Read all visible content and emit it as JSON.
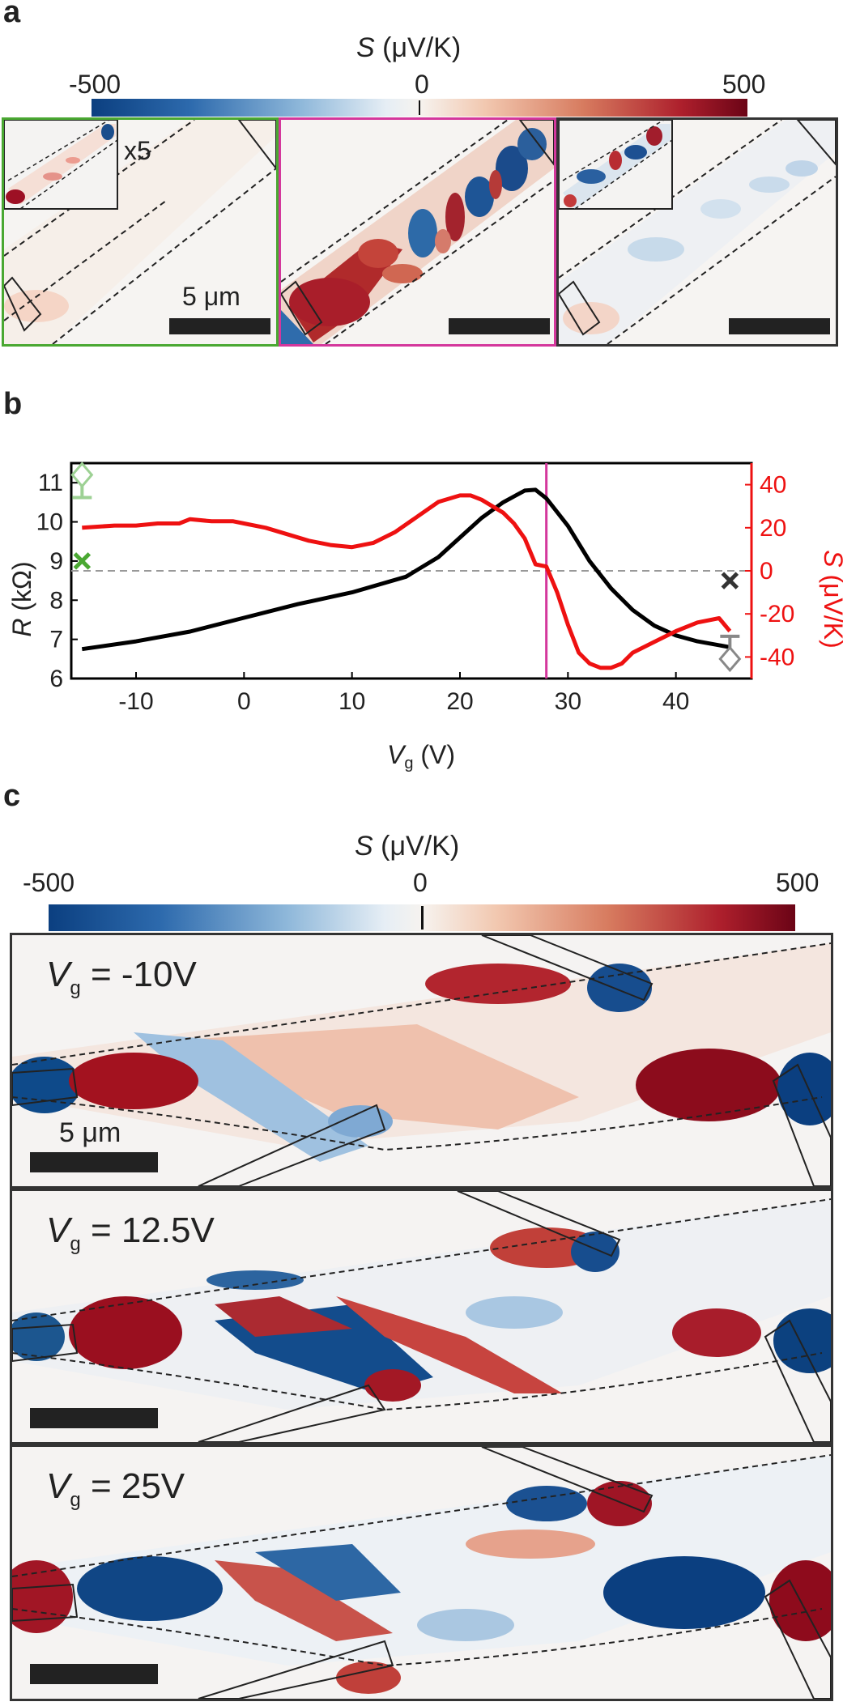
{
  "panel_a": {
    "letter": "a",
    "colorbar": {
      "label": "S (μV/K)",
      "label_var": "S",
      "label_unit": "(μV/K)",
      "ticks": [
        "-500",
        "0",
        "500"
      ],
      "min": -500,
      "max": 500,
      "colors": [
        "#0b3f80",
        "#f7f7f7",
        "#7a0617"
      ]
    },
    "maps": [
      {
        "frame_color": "#4aa832",
        "inset_label": "x5",
        "scalebar_label": "5 μm"
      },
      {
        "frame_color": "#d4379c",
        "scalebar_label": ""
      },
      {
        "frame_color": "#333333",
        "scalebar_label": ""
      }
    ]
  },
  "panel_b": {
    "letter": "b",
    "chart_data": {
      "type": "line",
      "xlabel": "Vg (V)",
      "xlabel_var": "V",
      "xlabel_sub": "g",
      "xlabel_unit": "(V)",
      "ylabel_left": "R (kΩ)",
      "ylabel_left_var": "R",
      "ylabel_left_unit": "(kΩ)",
      "ylabel_right": "S (μV/K)",
      "ylabel_right_var": "S",
      "ylabel_right_unit": "(μV/K)",
      "xlim": [
        -16,
        47
      ],
      "ylim_left": [
        6,
        11.5
      ],
      "ylim_right": [
        -50,
        50
      ],
      "xticks": [
        "-10",
        "0",
        "10",
        "20",
        "30",
        "40"
      ],
      "yticks_left": [
        "6",
        "7",
        "8",
        "9",
        "10",
        "11"
      ],
      "yticks_right": [
        "40",
        "20",
        "0",
        "-20",
        "-40"
      ],
      "series": [
        {
          "axis": "left",
          "color": "#000000",
          "x": [
            -15,
            -10,
            -5,
            0,
            5,
            10,
            15,
            18,
            20,
            22,
            24,
            26,
            27,
            28,
            30,
            32,
            34,
            36,
            38,
            40,
            42,
            45
          ],
          "values": [
            6.75,
            6.95,
            7.2,
            7.55,
            7.9,
            8.2,
            8.6,
            9.1,
            9.6,
            10.1,
            10.5,
            10.8,
            10.82,
            10.6,
            9.9,
            9.0,
            8.3,
            7.75,
            7.35,
            7.1,
            6.95,
            6.8
          ]
        },
        {
          "axis": "right",
          "color": "#ee1111",
          "x": [
            -15,
            -12,
            -10,
            -8,
            -6,
            -5,
            -3,
            -1,
            0,
            2,
            4,
            6,
            8,
            10,
            12,
            14,
            16,
            18,
            20,
            21,
            22,
            24,
            25,
            26,
            27,
            28,
            29,
            30,
            31,
            32,
            33,
            34,
            35,
            36,
            38,
            40,
            42,
            44,
            45
          ],
          "values": [
            20,
            21,
            21,
            22,
            22,
            24,
            23,
            23,
            22,
            20,
            17,
            14,
            12,
            11,
            13,
            18,
            25,
            32,
            35,
            35,
            33,
            27,
            22,
            15,
            3,
            2,
            -10,
            -25,
            -38,
            -43,
            -45,
            -45,
            -43,
            -38,
            -33,
            -28,
            -24,
            -22,
            -28
          ]
        }
      ],
      "reference_line": {
        "y_right": 0,
        "style": "dashed"
      },
      "vertical_line": {
        "x": 28,
        "color": "#d4379c"
      },
      "markers": [
        {
          "x": -15,
          "y_left": 9,
          "shape": "x",
          "color": "#4aa832"
        },
        {
          "x": -15,
          "y_left": 11.2,
          "shape": "diamond",
          "color": "#9dd194"
        },
        {
          "x": 45,
          "y_left": 8.5,
          "shape": "x",
          "color": "#333333"
        },
        {
          "x": 45,
          "y_left": 6.5,
          "shape": "diamond",
          "color": "#888888"
        }
      ]
    }
  },
  "panel_c": {
    "letter": "c",
    "colorbar": {
      "label": "S (μV/K)",
      "label_var": "S",
      "label_unit": "(μV/K)",
      "ticks": [
        "-500",
        "0",
        "500"
      ],
      "min": -500,
      "max": 500
    },
    "maps": [
      {
        "label_var": "V",
        "label_sub": "g",
        "label_value": " = -10V",
        "scalebar_label": "5 μm"
      },
      {
        "label_var": "V",
        "label_sub": "g",
        "label_value": " = 12.5V",
        "scalebar_label": ""
      },
      {
        "label_var": "V",
        "label_sub": "g",
        "label_value": " = 25V",
        "scalebar_label": ""
      }
    ]
  }
}
